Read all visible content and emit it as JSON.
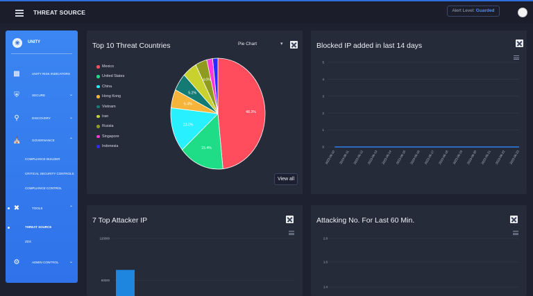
{
  "header": {
    "app_title": "THREAT SOURCE",
    "alert_label": "Alert Level:",
    "alert_value": "Guarded"
  },
  "sidebar": {
    "brand": "UNITY",
    "items": [
      {
        "label": "UNITY RISK INDICATORS",
        "icon": "bar-chart-icon"
      },
      {
        "label": "SECURE",
        "icon": "shield-icon"
      },
      {
        "label": "DISCOVERY",
        "icon": "search-icon"
      },
      {
        "label": "GOVERNANCE",
        "icon": "bank-icon"
      },
      {
        "label": "TOOLS",
        "icon": "tools-icon"
      },
      {
        "label": "ADMIN CONTROL",
        "icon": "gear-icon"
      }
    ],
    "governance_sub": [
      "COMPLIANCE BUILDER",
      "CRITICAL SECURITY CONTROLS",
      "COMPLIANCE CONTROL"
    ],
    "tools_sub": [
      "THREAT SOURCE",
      "ZDX"
    ]
  },
  "threat_countries": {
    "title": "Top 10 Threat Countries",
    "select_value": "Pie Chart",
    "view_all": "View all"
  },
  "blocked_ip": {
    "title": "Blocked IP added in last 14 days"
  },
  "attacker_ip": {
    "title": "7 Top Attacker IP"
  },
  "attacking_no": {
    "title": "Attacking No. For Last 60 Min."
  },
  "chart_data": [
    {
      "type": "pie",
      "title": "Top 10 Threat Countries",
      "categories": [
        "Mexico",
        "United States",
        "China",
        "Hong Kong",
        "Vietnam",
        "Iran",
        "Russia",
        "Singapore",
        "Indonesia"
      ],
      "values": [
        48.3,
        15.4,
        13.0,
        5.4,
        5.2,
        4.9,
        4.0,
        2.0,
        1.8
      ],
      "labels": [
        "48.3%",
        "15.4%",
        "13.0%",
        "5.4%",
        "5.2%",
        "",
        "4.0%",
        "",
        ""
      ],
      "colors": [
        "#ff4d5e",
        "#1fdc86",
        "#29f0ff",
        "#f7b43a",
        "#137a74",
        "#c9d12e",
        "#8f9b1f",
        "#ff38d8",
        "#2b2bff"
      ],
      "legend": "left"
    },
    {
      "type": "line",
      "title": "Blocked IP added in last 14 days",
      "categories": [
        "2023-06-10",
        "2023-06-11",
        "2023-06-12",
        "2023-06-13",
        "2023-06-14",
        "2023-06-15",
        "2023-06-16",
        "2023-06-17",
        "2023-06-18",
        "2023-06-19",
        "2023-06-20",
        "2023-06-21",
        "2023-06-22",
        "2023-06-23"
      ],
      "values": [
        0,
        0,
        0,
        0,
        0,
        0,
        0,
        0,
        0,
        0,
        0,
        0,
        0,
        0
      ],
      "yticks": [
        0,
        1,
        2,
        3,
        4,
        5
      ],
      "ylim": [
        0,
        5
      ],
      "color": "#2f7ff0"
    },
    {
      "type": "bar",
      "title": "7 Top Attacker IP",
      "values": [
        75000
      ],
      "yticks": [
        "120000",
        "60000"
      ],
      "ylim": [
        0,
        120000
      ],
      "color": "#1f86e0"
    },
    {
      "type": "line",
      "title": "Attacking No. For Last 60 Min.",
      "yticks": [
        "2.8",
        "1.6",
        "1.4"
      ]
    }
  ]
}
